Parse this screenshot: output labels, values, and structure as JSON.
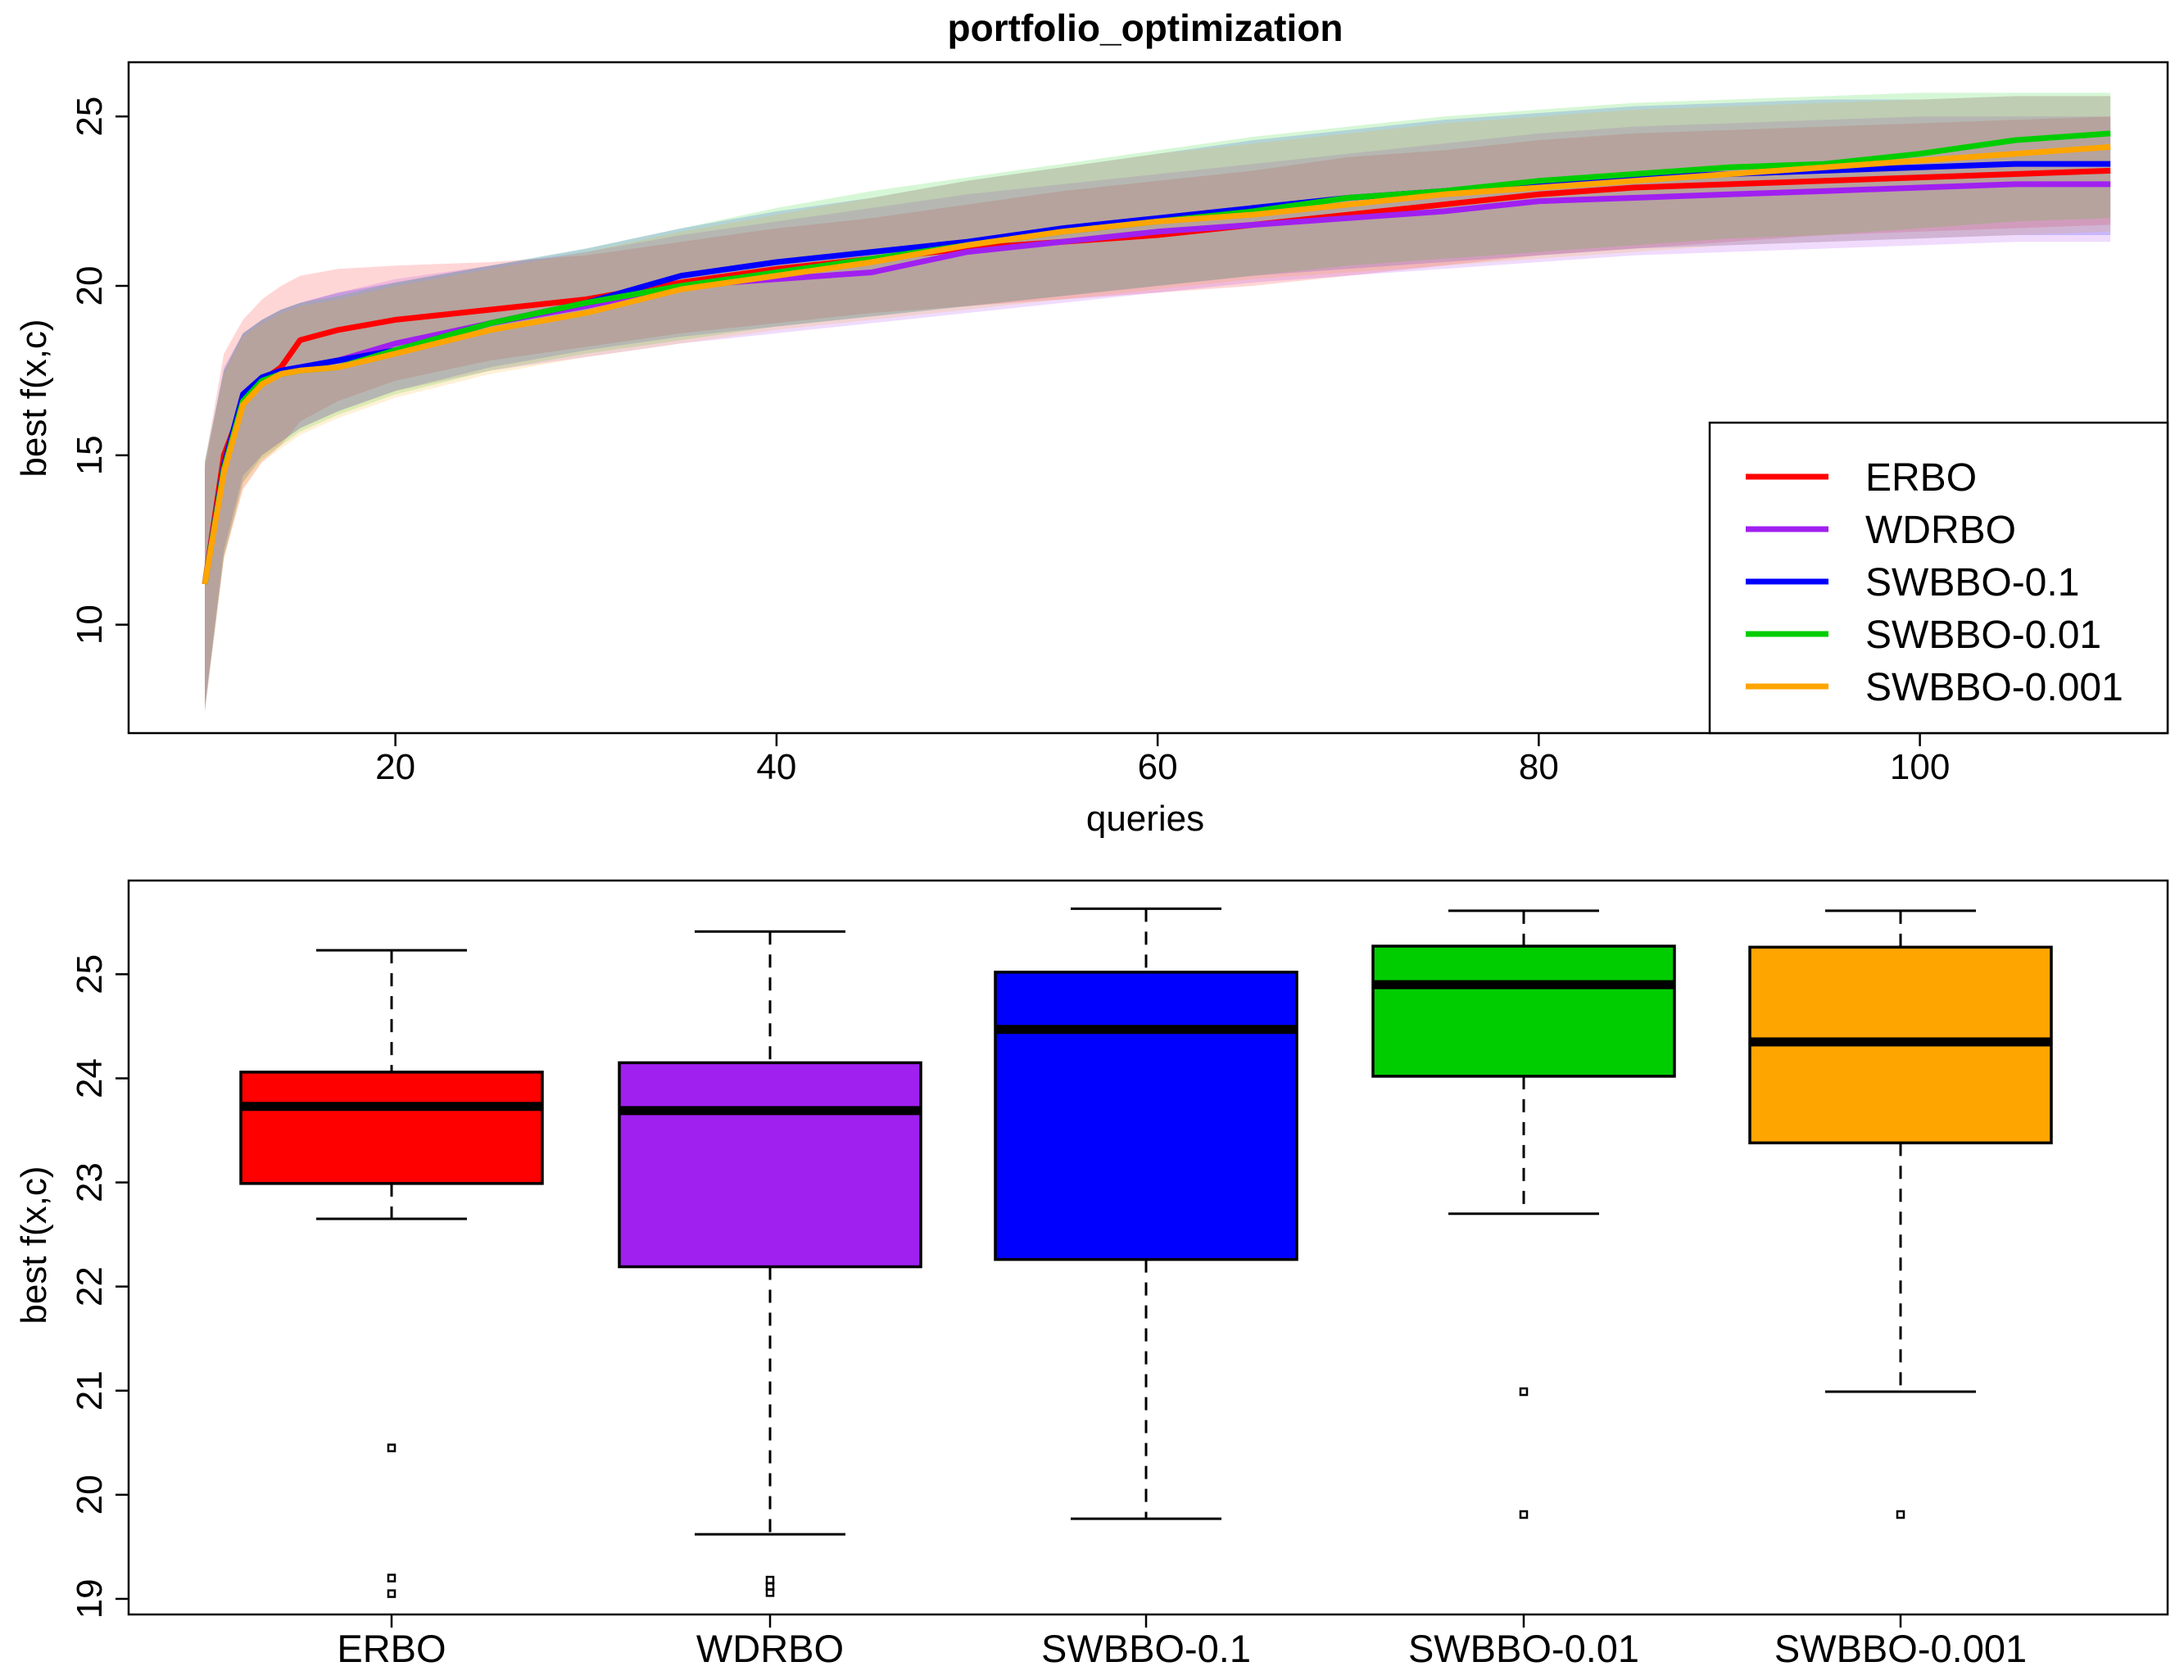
{
  "chart_data": [
    {
      "type": "line",
      "title": "portfolio_optimization",
      "xlabel": "queries",
      "ylabel": "best f(x,c)",
      "xlim": [
        6,
        113
      ],
      "ylim": [
        6.8,
        26.6
      ],
      "xticks": [
        20,
        40,
        60,
        80,
        100
      ],
      "yticks": [
        10,
        15,
        20,
        25
      ],
      "legend": {
        "placement": "bottom-right",
        "entries": [
          "ERBO",
          "WDRBO",
          "SWBBO-0.1",
          "SWBBO-0.01",
          "SWBBO-0.001"
        ]
      },
      "series": [
        {
          "name": "ERBO",
          "color": "#ff0000",
          "x": [
            10,
            11,
            12,
            13,
            14,
            15,
            17,
            20,
            25,
            30,
            35,
            40,
            45,
            50,
            55,
            60,
            65,
            70,
            75,
            80,
            85,
            90,
            95,
            100,
            105,
            110
          ],
          "y": [
            11.2,
            15.0,
            16.5,
            17.2,
            17.6,
            18.4,
            18.7,
            19.0,
            19.3,
            19.6,
            20.1,
            20.5,
            20.8,
            21.1,
            21.3,
            21.5,
            21.8,
            22.1,
            22.4,
            22.7,
            22.9,
            23.0,
            23.1,
            23.2,
            23.3,
            23.4
          ],
          "lower": [
            7.6,
            12.0,
            14.0,
            14.8,
            15.3,
            16.0,
            16.6,
            17.2,
            17.8,
            18.2,
            18.6,
            18.9,
            19.2,
            19.4,
            19.6,
            19.8,
            20.0,
            20.3,
            20.6,
            20.9,
            21.1,
            21.3,
            21.5,
            21.6,
            21.7,
            21.8
          ],
          "upper": [
            14.8,
            18.0,
            19.0,
            19.6,
            20.0,
            20.3,
            20.5,
            20.6,
            20.7,
            20.9,
            21.3,
            21.7,
            22.0,
            22.4,
            22.8,
            23.1,
            23.4,
            23.8,
            24.0,
            24.3,
            24.5,
            24.6,
            24.7,
            24.8,
            24.9,
            25.0
          ]
        },
        {
          "name": "WDRBO",
          "color": "#a020f0",
          "x": [
            10,
            11,
            12,
            13,
            14,
            15,
            17,
            20,
            25,
            30,
            35,
            40,
            45,
            50,
            55,
            60,
            65,
            70,
            75,
            80,
            85,
            90,
            95,
            100,
            105,
            110
          ],
          "y": [
            11.2,
            14.6,
            16.6,
            17.2,
            17.5,
            17.6,
            17.8,
            18.3,
            18.9,
            19.4,
            20.0,
            20.2,
            20.4,
            21.0,
            21.3,
            21.6,
            21.8,
            22.0,
            22.2,
            22.5,
            22.6,
            22.7,
            22.8,
            22.9,
            23.0,
            23.0
          ],
          "lower": [
            7.4,
            12.0,
            14.2,
            15.0,
            15.4,
            15.8,
            16.3,
            16.9,
            17.5,
            17.9,
            18.3,
            18.6,
            18.9,
            19.2,
            19.5,
            19.8,
            20.1,
            20.3,
            20.5,
            20.7,
            20.9,
            21.0,
            21.1,
            21.2,
            21.3,
            21.3
          ],
          "upper": [
            14.6,
            17.6,
            18.6,
            19.0,
            19.3,
            19.5,
            19.8,
            20.2,
            20.6,
            21.0,
            21.5,
            21.9,
            22.3,
            22.7,
            23.0,
            23.3,
            23.6,
            23.9,
            24.2,
            24.5,
            24.7,
            24.8,
            24.9,
            25.0,
            25.0,
            25.0
          ]
        },
        {
          "name": "SWBBO-0.1",
          "color": "#0000ff",
          "x": [
            10,
            11,
            12,
            13,
            14,
            15,
            17,
            20,
            25,
            30,
            35,
            40,
            45,
            50,
            55,
            60,
            65,
            70,
            75,
            80,
            85,
            90,
            95,
            100,
            105,
            110
          ],
          "y": [
            11.2,
            14.7,
            16.8,
            17.3,
            17.5,
            17.6,
            17.8,
            18.1,
            18.9,
            19.5,
            20.3,
            20.7,
            21.0,
            21.3,
            21.7,
            22.0,
            22.3,
            22.6,
            22.8,
            23.0,
            23.2,
            23.3,
            23.4,
            23.5,
            23.6,
            23.6
          ],
          "lower": [
            7.5,
            12.2,
            14.4,
            15.0,
            15.4,
            15.8,
            16.3,
            16.9,
            17.6,
            18.1,
            18.5,
            18.8,
            19.1,
            19.4,
            19.7,
            20.0,
            20.3,
            20.5,
            20.7,
            20.9,
            21.1,
            21.2,
            21.3,
            21.4,
            21.5,
            21.5
          ],
          "upper": [
            14.8,
            17.5,
            18.6,
            19.0,
            19.3,
            19.5,
            19.8,
            20.1,
            20.6,
            21.1,
            21.7,
            22.2,
            22.6,
            23.1,
            23.5,
            23.9,
            24.3,
            24.6,
            24.9,
            25.1,
            25.3,
            25.4,
            25.5,
            25.5,
            25.6,
            25.6
          ]
        },
        {
          "name": "SWBBO-0.01",
          "color": "#00cd00",
          "x": [
            10,
            11,
            12,
            13,
            14,
            15,
            17,
            20,
            25,
            30,
            35,
            40,
            45,
            50,
            55,
            60,
            65,
            70,
            75,
            80,
            85,
            90,
            95,
            100,
            105,
            110
          ],
          "y": [
            11.2,
            14.6,
            16.6,
            17.2,
            17.4,
            17.5,
            17.6,
            18.1,
            18.9,
            19.5,
            20.0,
            20.4,
            20.8,
            21.2,
            21.6,
            21.9,
            22.2,
            22.6,
            22.8,
            23.1,
            23.3,
            23.5,
            23.6,
            23.9,
            24.3,
            24.5
          ],
          "lower": [
            7.5,
            12.0,
            14.2,
            14.9,
            15.3,
            15.7,
            16.2,
            16.8,
            17.5,
            18.0,
            18.4,
            18.8,
            19.1,
            19.4,
            19.7,
            20.0,
            20.3,
            20.6,
            20.8,
            21.0,
            21.2,
            21.4,
            21.5,
            21.7,
            21.9,
            22.0
          ],
          "upper": [
            14.8,
            17.5,
            18.6,
            19.0,
            19.3,
            19.5,
            19.7,
            20.1,
            20.6,
            21.1,
            21.7,
            22.3,
            22.8,
            23.2,
            23.6,
            24.0,
            24.4,
            24.7,
            25.0,
            25.2,
            25.4,
            25.5,
            25.6,
            25.7,
            25.7,
            25.7
          ]
        },
        {
          "name": "SWBBO-0.001",
          "color": "#ffa500",
          "x": [
            10,
            11,
            12,
            13,
            14,
            15,
            17,
            20,
            25,
            30,
            35,
            40,
            45,
            50,
            55,
            60,
            65,
            70,
            75,
            80,
            85,
            90,
            95,
            100,
            105,
            110
          ],
          "y": [
            11.2,
            14.5,
            16.5,
            17.1,
            17.4,
            17.5,
            17.6,
            18.0,
            18.7,
            19.2,
            19.9,
            20.3,
            20.7,
            21.2,
            21.6,
            21.9,
            22.1,
            22.4,
            22.7,
            22.9,
            23.1,
            23.3,
            23.5,
            23.7,
            23.9,
            24.1
          ],
          "lower": [
            7.4,
            11.9,
            14.0,
            14.8,
            15.2,
            15.6,
            16.1,
            16.7,
            17.4,
            17.9,
            18.3,
            18.7,
            19.0,
            19.3,
            19.6,
            19.9,
            20.2,
            20.4,
            20.6,
            20.8,
            21.0,
            21.2,
            21.3,
            21.4,
            21.5,
            21.6
          ],
          "upper": [
            14.7,
            17.4,
            18.5,
            18.9,
            19.2,
            19.4,
            19.6,
            20.0,
            20.5,
            21.0,
            21.6,
            22.1,
            22.6,
            23.1,
            23.5,
            23.9,
            24.2,
            24.5,
            24.8,
            25.0,
            25.2,
            25.3,
            25.4,
            25.5,
            25.6,
            25.6
          ]
        }
      ]
    },
    {
      "type": "box",
      "title": "",
      "xlabel": "",
      "ylabel": "best f(x,c)",
      "ylim": [
        18.85,
        25.9
      ],
      "yticks": [
        19,
        20,
        21,
        22,
        23,
        24,
        25
      ],
      "categories": [
        "ERBO",
        "WDRBO",
        "SWBBO-0.1",
        "SWBBO-0.01",
        "SWBBO-0.001"
      ],
      "boxes": [
        {
          "name": "ERBO",
          "color": "#ff0000",
          "whisker_low": 22.65,
          "q1": 22.99,
          "median": 23.73,
          "q3": 24.06,
          "whisker_high": 25.23,
          "outliers": [
            20.45,
            19.2,
            19.05
          ]
        },
        {
          "name": "WDRBO",
          "color": "#a020f0",
          "whisker_low": 19.62,
          "q1": 22.19,
          "median": 23.69,
          "q3": 24.15,
          "whisker_high": 25.41,
          "outliers": [
            19.18,
            19.12,
            19.06
          ]
        },
        {
          "name": "SWBBO-0.1",
          "color": "#0000ff",
          "whisker_low": 19.77,
          "q1": 22.26,
          "median": 24.47,
          "q3": 25.02,
          "whisker_high": 25.63,
          "outliers": []
        },
        {
          "name": "SWBBO-0.01",
          "color": "#00cd00",
          "whisker_low": 22.7,
          "q1": 24.02,
          "median": 24.9,
          "q3": 25.27,
          "whisker_high": 25.61,
          "outliers": [
            20.99,
            19.81
          ]
        },
        {
          "name": "SWBBO-0.001",
          "color": "#ffa500",
          "whisker_low": 20.99,
          "q1": 23.38,
          "median": 24.35,
          "q3": 25.26,
          "whisker_high": 25.61,
          "outliers": [
            19.81
          ]
        }
      ]
    }
  ]
}
